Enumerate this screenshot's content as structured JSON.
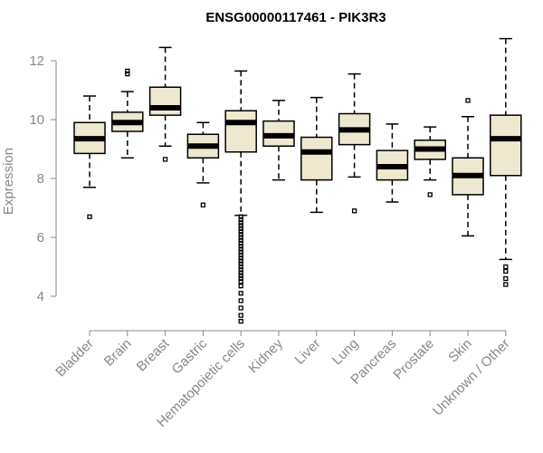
{
  "chart_data": {
    "type": "boxplot",
    "title": "ENSG00000117461 - PIK3R3",
    "xlabel": "",
    "ylabel": "Expression",
    "ylim": [
      3,
      13.3
    ],
    "yticks": [
      4,
      6,
      8,
      10,
      12
    ],
    "box_fill": "#EEE8D0",
    "categories": [
      "Bladder",
      "Brain",
      "Breast",
      "Gastric",
      "Hematopoietic cells",
      "Kidney",
      "Liver",
      "Lung",
      "Pancreas",
      "Prostate",
      "Skin",
      "Unknown / Other"
    ],
    "boxes": [
      {
        "name": "Bladder",
        "min": 7.7,
        "q1": 8.85,
        "median": 9.35,
        "q3": 9.9,
        "max": 10.8,
        "outliers": [
          6.7
        ]
      },
      {
        "name": "Brain",
        "min": 8.7,
        "q1": 9.6,
        "median": 9.9,
        "q3": 10.25,
        "max": 10.95,
        "outliers": [
          11.55,
          11.65
        ]
      },
      {
        "name": "Breast",
        "min": 9.1,
        "q1": 10.15,
        "median": 10.4,
        "q3": 11.1,
        "max": 12.45,
        "outliers": [
          8.65
        ]
      },
      {
        "name": "Gastric",
        "min": 7.85,
        "q1": 8.7,
        "median": 9.1,
        "q3": 9.5,
        "max": 9.9,
        "outliers": [
          7.1
        ]
      },
      {
        "name": "Hematopoietic cells",
        "min": 6.75,
        "q1": 8.9,
        "median": 9.9,
        "q3": 10.3,
        "max": 11.65,
        "outliers": [
          6.7,
          6.6,
          6.5,
          6.4,
          6.3,
          6.2,
          6.1,
          6.0,
          5.9,
          5.8,
          5.7,
          5.6,
          5.5,
          5.4,
          5.3,
          5.2,
          5.1,
          5.0,
          4.9,
          4.8,
          4.7,
          4.6,
          4.5,
          4.35,
          4.1,
          3.85,
          3.6,
          3.35,
          3.15
        ]
      },
      {
        "name": "Kidney",
        "min": 7.95,
        "q1": 9.1,
        "median": 9.45,
        "q3": 9.95,
        "max": 10.65,
        "outliers": []
      },
      {
        "name": "Liver",
        "min": 6.85,
        "q1": 7.95,
        "median": 8.9,
        "q3": 9.4,
        "max": 10.75,
        "outliers": []
      },
      {
        "name": "Lung",
        "min": 8.05,
        "q1": 9.15,
        "median": 9.65,
        "q3": 10.2,
        "max": 11.55,
        "outliers": [
          6.9
        ]
      },
      {
        "name": "Pancreas",
        "min": 7.2,
        "q1": 7.95,
        "median": 8.4,
        "q3": 8.95,
        "max": 9.85,
        "outliers": []
      },
      {
        "name": "Prostate",
        "min": 7.95,
        "q1": 8.65,
        "median": 9.0,
        "q3": 9.3,
        "max": 9.75,
        "outliers": [
          7.45
        ]
      },
      {
        "name": "Skin",
        "min": 6.05,
        "q1": 7.45,
        "median": 8.1,
        "q3": 8.7,
        "max": 10.1,
        "outliers": [
          10.65
        ]
      },
      {
        "name": "Unknown / Other",
        "min": 5.25,
        "q1": 8.1,
        "median": 9.35,
        "q3": 10.15,
        "max": 12.75,
        "outliers": [
          5.0,
          4.85,
          4.6,
          4.4
        ]
      }
    ]
  }
}
